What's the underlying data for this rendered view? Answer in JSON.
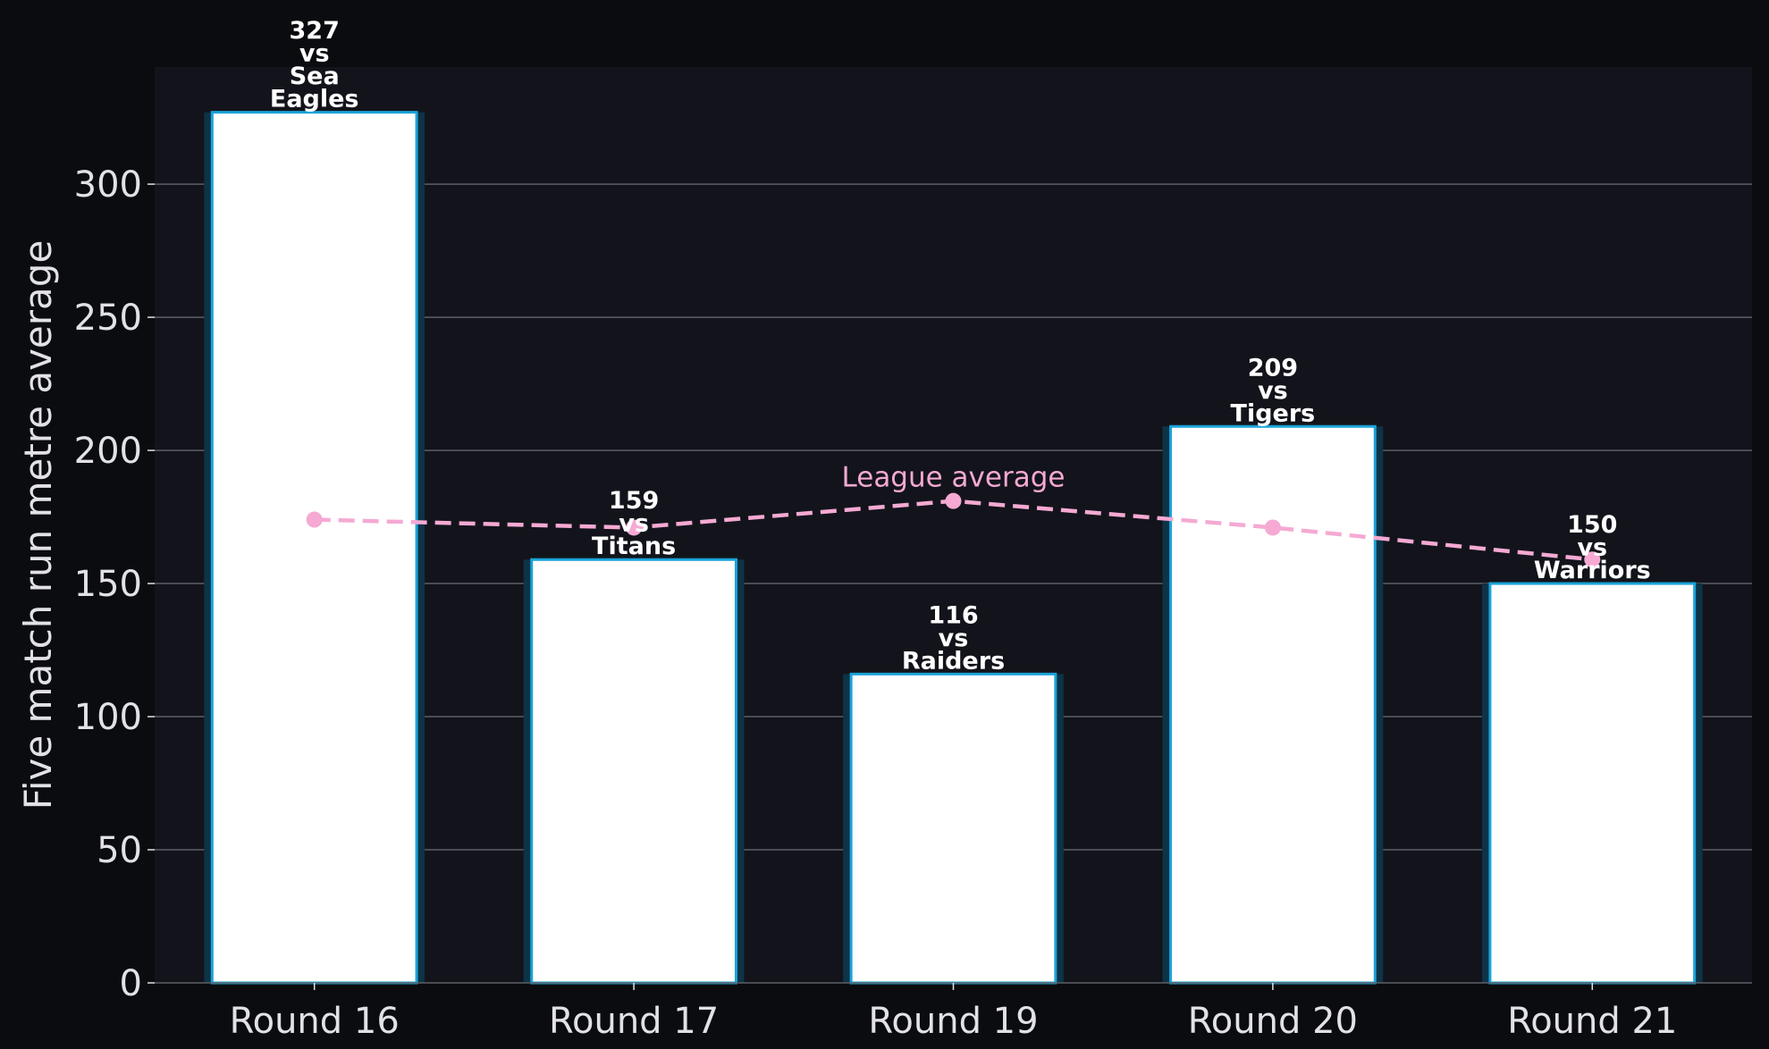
{
  "chart_data": {
    "type": "bar",
    "categories": [
      "Round 16",
      "Round 17",
      "Round 19",
      "Round 20",
      "Round 21"
    ],
    "values": [
      327,
      159,
      116,
      209,
      150
    ],
    "bar_labels": [
      [
        "327",
        "vs",
        "Sea",
        "Eagles"
      ],
      [
        "159",
        "vs",
        "Titans"
      ],
      [
        "116",
        "vs",
        "Raiders"
      ],
      [
        "209",
        "vs",
        "Tigers"
      ],
      [
        "150",
        "vs",
        "Warriors"
      ]
    ],
    "line_series": {
      "name": "League average",
      "values": [
        174,
        171,
        181,
        171,
        159
      ]
    },
    "ylabel": "Five match run metre average",
    "xlabel": "",
    "ylim": [
      0,
      344
    ],
    "yticks": [
      0,
      50,
      100,
      150,
      200,
      250,
      300
    ],
    "grid": true,
    "colors": {
      "background": "#0b0c10",
      "plot_background": "#13141b",
      "bar_fill": "#ffffff",
      "bar_edge": "#1aa3d8",
      "bar_shadow": "#0d3347",
      "line": "#f5a9d3",
      "grid": "#5c5f66",
      "text": "#e2e2e6"
    }
  }
}
